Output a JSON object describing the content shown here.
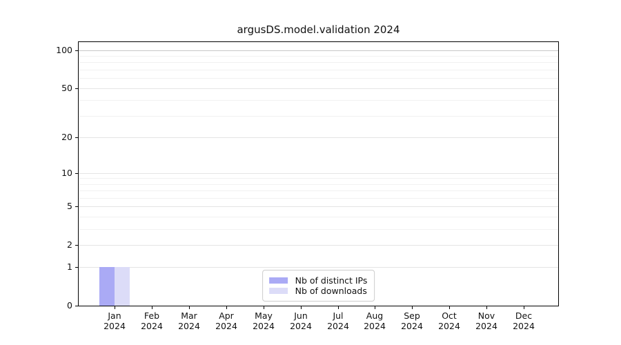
{
  "chart_data": {
    "type": "bar",
    "title": "argusDS.model.validation 2024",
    "xlabel": "",
    "ylabel": "",
    "categories": [
      "Jan 2024",
      "Feb 2024",
      "Mar 2024",
      "Apr 2024",
      "May 2024",
      "Jun 2024",
      "Jul 2024",
      "Aug 2024",
      "Sep 2024",
      "Oct 2024",
      "Nov 2024",
      "Dec 2024"
    ],
    "series": [
      {
        "name": "Nb of distinct IPs",
        "color": "#aaaaf5",
        "values": [
          1,
          0,
          0,
          0,
          0,
          0,
          0,
          0,
          0,
          0,
          0,
          0
        ]
      },
      {
        "name": "Nb of downloads",
        "color": "#dcdcf8",
        "values": [
          1,
          0,
          0,
          0,
          0,
          0,
          0,
          0,
          0,
          0,
          0,
          0
        ]
      }
    ],
    "yscale": "log1p",
    "ylim": [
      0,
      116
    ],
    "yticks": [
      0,
      1,
      2,
      5,
      10,
      20,
      50,
      100
    ],
    "yticks_minor": [
      3,
      4,
      6,
      7,
      8,
      9,
      30,
      40,
      60,
      70,
      80,
      90
    ],
    "grid": true,
    "legend": {
      "position": "lower center"
    },
    "colors": {
      "frame": "#000000",
      "grid_major": "#e4e4e4",
      "grid_minor": "#f1f1f1",
      "grid_100": "#c6c6c6"
    }
  }
}
